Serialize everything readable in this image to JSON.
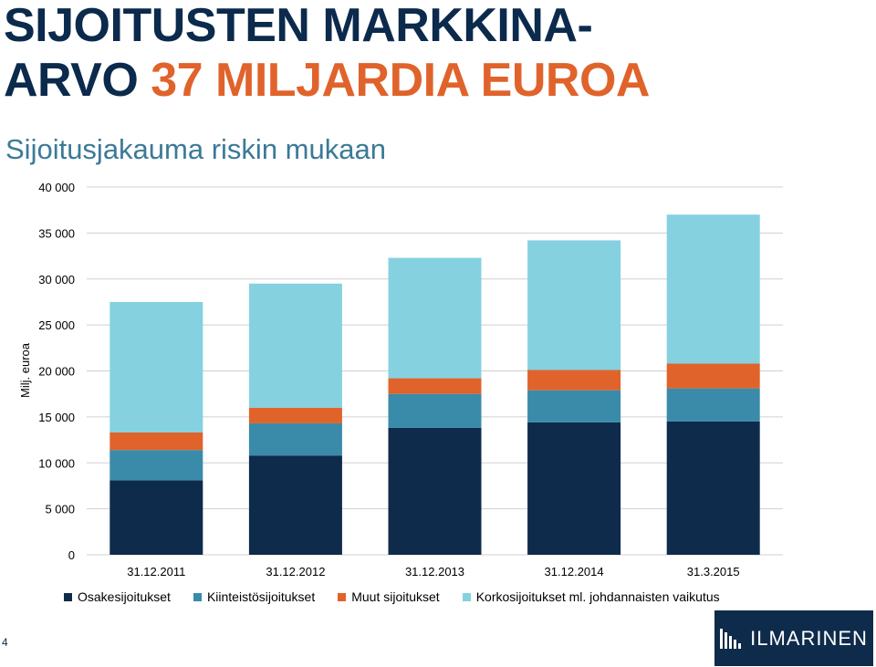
{
  "header": {
    "title_line1": "SIJOITUSTEN MARKKINA-",
    "title_line2_prefix": "ARVO ",
    "title_line2_highlight": "37 MILJARDIA EUROA",
    "subtitle": "Sijoitusjakauma riskin mukaan"
  },
  "page_number": "4",
  "logo": {
    "text": "ILMARINEN"
  },
  "colors": {
    "title": "#0b2a4c",
    "highlight": "#e0632b",
    "subtitle": "#3b7a98"
  },
  "chart_data": {
    "type": "bar",
    "stacked": true,
    "categories": [
      "31.12.2011",
      "31.12.2012",
      "31.12.2013",
      "31.12.2014",
      "31.3.2015"
    ],
    "series": [
      {
        "name": "Osakesijoitukset",
        "color": "#0e2b4b",
        "values": [
          8100,
          10800,
          13800,
          14400,
          14500
        ]
      },
      {
        "name": "Kiinteistösijoitukset",
        "color": "#3a8ba9",
        "values": [
          3300,
          3500,
          3700,
          3500,
          3600
        ]
      },
      {
        "name": "Muut sijoitukset",
        "color": "#e0632b",
        "values": [
          1900,
          1700,
          1700,
          2200,
          2700
        ]
      },
      {
        "name": "Korkosijoitukset ml. johdannaisten vaikutus",
        "color": "#85d1e0",
        "values": [
          14200,
          13500,
          13100,
          14100,
          16200
        ]
      }
    ],
    "ylabel": "Milj. euroa",
    "ylim": [
      0,
      40000
    ],
    "yticks": [
      0,
      5000,
      10000,
      15000,
      20000,
      25000,
      30000,
      35000,
      40000
    ],
    "ytick_labels": [
      "0",
      "5 000",
      "10 000",
      "15 000",
      "20 000",
      "25 000",
      "30 000",
      "35 000",
      "40 000"
    ],
    "grid": true,
    "legend": "bottom"
  }
}
